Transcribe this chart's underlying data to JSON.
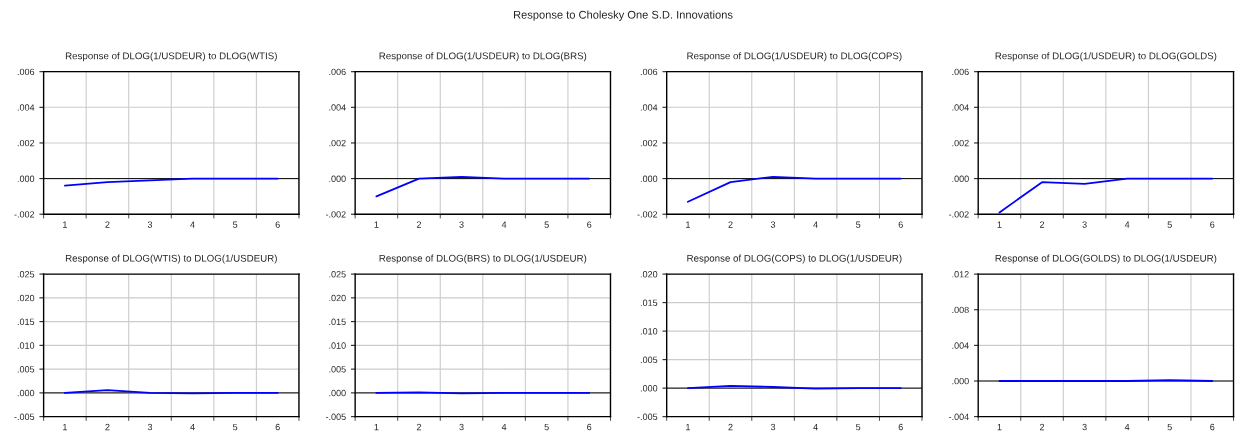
{
  "chart_data": [
    {
      "type": "line",
      "title": "Response of DLOG(1/USDEUR) to DLOG(WTIS)",
      "annotations": [
        "Response to Cholesky One S.D. Innovations"
      ],
      "categories": [
        "1",
        "2",
        "3",
        "4",
        "5",
        "6"
      ],
      "series": [
        {
          "color": "#0000ff",
          "values": [
            -0.0004,
            -0.0002,
            -0.0001,
            0.0,
            0.0,
            0.0
          ]
        }
      ],
      "ylim": [
        -0.002,
        0.006
      ],
      "yticks": [
        {
          "value": -0.002,
          "label": "-.002"
        },
        {
          "value": 0.0,
          "label": ".000"
        },
        {
          "value": 0.002,
          "label": ".002"
        },
        {
          "value": 0.004,
          "label": ".004"
        },
        {
          "value": 0.006,
          "label": ".006"
        }
      ],
      "ref_lines": [
        {
          "axis": "y",
          "value": 0,
          "color": "#000000"
        }
      ],
      "grid": true
    },
    {
      "type": "line",
      "title": "Response of DLOG(1/USDEUR) to DLOG(BRS)",
      "categories": [
        "1",
        "2",
        "3",
        "4",
        "5",
        "6"
      ],
      "series": [
        {
          "color": "#0000ff",
          "values": [
            -0.001,
            0.0,
            0.0001,
            0.0,
            0.0,
            0.0
          ]
        }
      ],
      "ylim": [
        -0.002,
        0.006
      ],
      "yticks": [
        {
          "value": -0.002,
          "label": "-.002"
        },
        {
          "value": 0.0,
          "label": ".000"
        },
        {
          "value": 0.002,
          "label": ".002"
        },
        {
          "value": 0.004,
          "label": ".004"
        },
        {
          "value": 0.006,
          "label": ".006"
        }
      ],
      "ref_lines": [
        {
          "axis": "y",
          "value": 0,
          "color": "#000000"
        }
      ],
      "grid": true
    },
    {
      "type": "line",
      "title": "Response of DLOG(1/USDEUR) to DLOG(COPS)",
      "categories": [
        "1",
        "2",
        "3",
        "4",
        "5",
        "6"
      ],
      "series": [
        {
          "color": "#0000ff",
          "values": [
            -0.0013,
            -0.0002,
            0.0001,
            0.0,
            0.0,
            0.0
          ]
        }
      ],
      "ylim": [
        -0.002,
        0.006
      ],
      "yticks": [
        {
          "value": -0.002,
          "label": "-.002"
        },
        {
          "value": 0.0,
          "label": ".000"
        },
        {
          "value": 0.002,
          "label": ".002"
        },
        {
          "value": 0.004,
          "label": ".004"
        },
        {
          "value": 0.006,
          "label": ".006"
        }
      ],
      "ref_lines": [
        {
          "axis": "y",
          "value": 0,
          "color": "#000000"
        }
      ],
      "grid": true
    },
    {
      "type": "line",
      "title": "Response of DLOG(1/USDEUR) to DLOG(GOLDS)",
      "categories": [
        "1",
        "2",
        "3",
        "4",
        "5",
        "6"
      ],
      "series": [
        {
          "color": "#0000ff",
          "values": [
            -0.0019,
            -0.0002,
            -0.0003,
            0.0,
            0.0,
            0.0
          ]
        }
      ],
      "ylim": [
        -0.002,
        0.006
      ],
      "yticks": [
        {
          "value": -0.002,
          "label": "-.002"
        },
        {
          "value": 0.0,
          "label": ".000"
        },
        {
          "value": 0.002,
          "label": ".002"
        },
        {
          "value": 0.004,
          "label": ".004"
        },
        {
          "value": 0.006,
          "label": ".006"
        }
      ],
      "ref_lines": [
        {
          "axis": "y",
          "value": 0,
          "color": "#000000"
        }
      ],
      "grid": true
    },
    {
      "type": "line",
      "title": "Response of DLOG(WTIS) to DLOG(1/USDEUR)",
      "categories": [
        "1",
        "2",
        "3",
        "4",
        "5",
        "6"
      ],
      "series": [
        {
          "color": "#0000ff",
          "values": [
            0.0,
            0.0006,
            0.0,
            -0.0001,
            0.0,
            0.0
          ]
        }
      ],
      "ylim": [
        -0.005,
        0.025
      ],
      "yticks": [
        {
          "value": -0.005,
          "label": "-.005"
        },
        {
          "value": 0.0,
          "label": ".000"
        },
        {
          "value": 0.005,
          "label": ".005"
        },
        {
          "value": 0.01,
          "label": ".010"
        },
        {
          "value": 0.015,
          "label": ".015"
        },
        {
          "value": 0.02,
          "label": ".020"
        },
        {
          "value": 0.025,
          "label": ".025"
        }
      ],
      "ref_lines": [
        {
          "axis": "y",
          "value": 0,
          "color": "#000000"
        }
      ],
      "grid": true
    },
    {
      "type": "line",
      "title": "Response of DLOG(BRS) to DLOG(1/USDEUR)",
      "categories": [
        "1",
        "2",
        "3",
        "4",
        "5",
        "6"
      ],
      "series": [
        {
          "color": "#0000ff",
          "values": [
            0.0,
            0.0001,
            -0.0001,
            0.0,
            0.0,
            0.0
          ]
        }
      ],
      "ylim": [
        -0.005,
        0.025
      ],
      "yticks": [
        {
          "value": -0.005,
          "label": "-.005"
        },
        {
          "value": 0.0,
          "label": ".000"
        },
        {
          "value": 0.005,
          "label": ".005"
        },
        {
          "value": 0.01,
          "label": ".010"
        },
        {
          "value": 0.015,
          "label": ".015"
        },
        {
          "value": 0.02,
          "label": ".020"
        },
        {
          "value": 0.025,
          "label": ".025"
        }
      ],
      "ref_lines": [
        {
          "axis": "y",
          "value": 0,
          "color": "#000000"
        }
      ],
      "grid": true
    },
    {
      "type": "line",
      "title": "Response of DLOG(COPS) to DLOG(1/USDEUR)",
      "categories": [
        "1",
        "2",
        "3",
        "4",
        "5",
        "6"
      ],
      "series": [
        {
          "color": "#0000ff",
          "values": [
            0.0,
            0.0004,
            0.0002,
            -0.0001,
            0.0,
            0.0
          ]
        }
      ],
      "ylim": [
        -0.005,
        0.02
      ],
      "yticks": [
        {
          "value": -0.005,
          "label": "-.005"
        },
        {
          "value": 0.0,
          "label": ".000"
        },
        {
          "value": 0.005,
          "label": ".005"
        },
        {
          "value": 0.01,
          "label": ".010"
        },
        {
          "value": 0.015,
          "label": ".015"
        },
        {
          "value": 0.02,
          "label": ".020"
        }
      ],
      "ref_lines": [
        {
          "axis": "y",
          "value": 0,
          "color": "#000000"
        }
      ],
      "grid": true
    },
    {
      "type": "line",
      "title": "Response of DLOG(GOLDS) to DLOG(1/USDEUR)",
      "categories": [
        "1",
        "2",
        "3",
        "4",
        "5",
        "6"
      ],
      "series": [
        {
          "color": "#0000ff",
          "values": [
            0.0,
            0.0,
            0.0,
            0.0,
            0.0001,
            0.0
          ]
        }
      ],
      "ylim": [
        -0.004,
        0.012
      ],
      "yticks": [
        {
          "value": -0.004,
          "label": "-.004"
        },
        {
          "value": 0.0,
          "label": ".000"
        },
        {
          "value": 0.004,
          "label": ".004"
        },
        {
          "value": 0.008,
          "label": ".008"
        },
        {
          "value": 0.012,
          "label": ".012"
        }
      ],
      "ref_lines": [
        {
          "axis": "y",
          "value": 0,
          "color": "#000000"
        }
      ],
      "grid": true
    }
  ]
}
